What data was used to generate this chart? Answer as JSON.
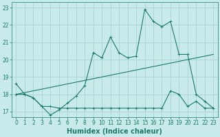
{
  "title": "",
  "xlabel": "Humidex (Indice chaleur)",
  "ylabel": "",
  "bg_color": "#c8eaea",
  "grid_color": "#a8d4d4",
  "line_color": "#1a7a6a",
  "xlim": [
    -0.5,
    23.5
  ],
  "ylim": [
    16.7,
    23.3
  ],
  "yticks": [
    17,
    18,
    19,
    20,
    21,
    22,
    23
  ],
  "xticks": [
    0,
    1,
    2,
    3,
    4,
    5,
    6,
    7,
    8,
    9,
    10,
    11,
    12,
    13,
    14,
    15,
    16,
    17,
    18,
    19,
    20,
    21,
    22,
    23
  ],
  "line1_x": [
    0,
    1,
    2,
    3,
    4,
    5,
    6,
    7,
    8,
    9,
    10,
    11,
    12,
    13,
    14,
    15,
    16,
    17,
    18,
    19,
    20,
    21,
    22,
    23
  ],
  "line1_y": [
    18.6,
    18.0,
    17.8,
    17.3,
    16.8,
    17.1,
    17.5,
    17.9,
    18.5,
    20.4,
    20.1,
    21.3,
    20.4,
    20.1,
    20.2,
    22.9,
    22.2,
    21.9,
    22.2,
    20.3,
    20.3,
    18.0,
    17.6,
    17.2
  ],
  "line2_x": [
    0,
    1,
    2,
    3,
    4,
    5,
    6,
    7,
    8,
    9,
    10,
    11,
    12,
    13,
    14,
    15,
    16,
    17,
    18,
    19,
    20,
    21,
    22,
    23
  ],
  "line2_y": [
    18.0,
    18.0,
    17.8,
    17.3,
    17.3,
    17.2,
    17.2,
    17.2,
    17.2,
    17.2,
    17.2,
    17.2,
    17.2,
    17.2,
    17.2,
    17.2,
    17.2,
    17.2,
    18.2,
    18.0,
    17.3,
    17.6,
    17.2,
    17.2
  ],
  "line3_x": [
    0,
    23
  ],
  "line3_y": [
    18.0,
    20.3
  ],
  "xlabel_fontsize": 7,
  "tick_fontsize": 5.5
}
